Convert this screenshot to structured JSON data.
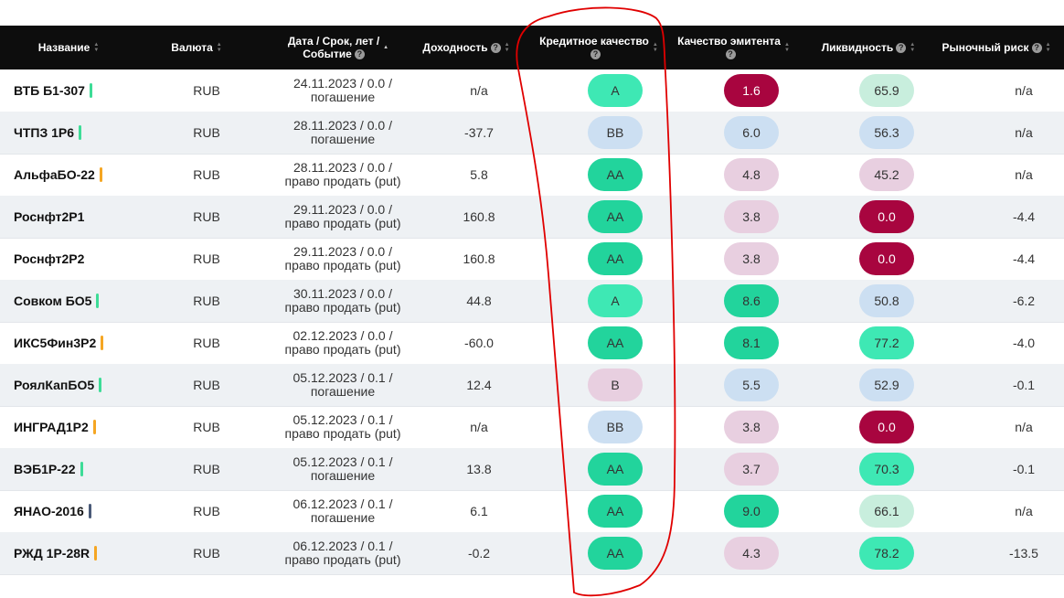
{
  "header": {
    "name": "Название",
    "currency": "Валюта",
    "date_line1": "Дата / Срок, лет /",
    "date_line2": "Событие",
    "yield": "Доходность",
    "credit": "Кредитное качество",
    "issuer": "Качество эмитента",
    "liquidity": "Ликвидность",
    "market_risk": "Рыночный риск",
    "help_icon": "?"
  },
  "colors": {
    "header_bg": "#0d0d0d",
    "green_dark": "#22d49c",
    "green_mid": "#3ee8b4",
    "green_light": "#c8eedd",
    "blue_light": "#ccdff2",
    "pink_light": "#e8cfe0",
    "crimson": "#a8053f",
    "annotation_red": "#e00000"
  },
  "rows": [
    {
      "name": "ВТБ Б1-307",
      "bar": "#3ddc97",
      "currency": "RUB",
      "date": "24.11.2023 / 0.0 /",
      "event": "погашение",
      "yield": "n/a",
      "credit": "A",
      "credit_color": "#3ee8b4",
      "issuer": "1.6",
      "issuer_color": "#a8053f",
      "issuer_text": "#ffffff",
      "liq": "65.9",
      "liq_color": "#c8eedd",
      "liq_text": "#333333",
      "risk": "n/a"
    },
    {
      "name": "ЧТПЗ 1Р6",
      "bar": "#3ddc97",
      "currency": "RUB",
      "date": "28.11.2023 / 0.0 /",
      "event": "погашение",
      "yield": "-37.7",
      "credit": "BB",
      "credit_color": "#ccdff2",
      "issuer": "6.0",
      "issuer_color": "#ccdff2",
      "issuer_text": "#333333",
      "liq": "56.3",
      "liq_color": "#ccdff2",
      "liq_text": "#333333",
      "risk": "n/a"
    },
    {
      "name": "АльфаБО-22",
      "bar": "#f5a623",
      "currency": "RUB",
      "date": "28.11.2023 / 0.0 /",
      "event": "право продать (put)",
      "yield": "5.8",
      "credit": "AA",
      "credit_color": "#22d49c",
      "issuer": "4.8",
      "issuer_color": "#e8cfe0",
      "issuer_text": "#333333",
      "liq": "45.2",
      "liq_color": "#e8cfe0",
      "liq_text": "#333333",
      "risk": "n/a"
    },
    {
      "name": "Роснфт2Р1",
      "bar": "",
      "currency": "RUB",
      "date": "29.11.2023 / 0.0 /",
      "event": "право продать (put)",
      "yield": "160.8",
      "credit": "AA",
      "credit_color": "#22d49c",
      "issuer": "3.8",
      "issuer_color": "#e8cfe0",
      "issuer_text": "#333333",
      "liq": "0.0",
      "liq_color": "#a8053f",
      "liq_text": "#ffffff",
      "risk": "-4.4"
    },
    {
      "name": "Роснфт2Р2",
      "bar": "",
      "currency": "RUB",
      "date": "29.11.2023 / 0.0 /",
      "event": "право продать (put)",
      "yield": "160.8",
      "credit": "AA",
      "credit_color": "#22d49c",
      "issuer": "3.8",
      "issuer_color": "#e8cfe0",
      "issuer_text": "#333333",
      "liq": "0.0",
      "liq_color": "#a8053f",
      "liq_text": "#ffffff",
      "risk": "-4.4"
    },
    {
      "name": "Совком БО5",
      "bar": "#3ddc97",
      "currency": "RUB",
      "date": "30.11.2023 / 0.0 /",
      "event": "право продать (put)",
      "yield": "44.8",
      "credit": "A",
      "credit_color": "#3ee8b4",
      "issuer": "8.6",
      "issuer_color": "#22d49c",
      "issuer_text": "#333333",
      "liq": "50.8",
      "liq_color": "#ccdff2",
      "liq_text": "#333333",
      "risk": "-6.2"
    },
    {
      "name": "ИКС5Фин3Р2",
      "bar": "#f5a623",
      "currency": "RUB",
      "date": "02.12.2023 / 0.0 /",
      "event": "право продать (put)",
      "yield": "-60.0",
      "credit": "AA",
      "credit_color": "#22d49c",
      "issuer": "8.1",
      "issuer_color": "#22d49c",
      "issuer_text": "#333333",
      "liq": "77.2",
      "liq_color": "#3ee8b4",
      "liq_text": "#333333",
      "risk": "-4.0"
    },
    {
      "name": "РоялКапБО5",
      "bar": "#3ddc97",
      "currency": "RUB",
      "date": "05.12.2023 / 0.1 /",
      "event": "погашение",
      "yield": "12.4",
      "credit": "B",
      "credit_color": "#e8cfe0",
      "issuer": "5.5",
      "issuer_color": "#ccdff2",
      "issuer_text": "#333333",
      "liq": "52.9",
      "liq_color": "#ccdff2",
      "liq_text": "#333333",
      "risk": "-0.1"
    },
    {
      "name": "ИНГРАД1Р2",
      "bar": "#f5a623",
      "currency": "RUB",
      "date": "05.12.2023 / 0.1 /",
      "event": "право продать (put)",
      "yield": "n/a",
      "credit": "BB",
      "credit_color": "#ccdff2",
      "issuer": "3.8",
      "issuer_color": "#e8cfe0",
      "issuer_text": "#333333",
      "liq": "0.0",
      "liq_color": "#a8053f",
      "liq_text": "#ffffff",
      "risk": "n/a"
    },
    {
      "name": "ВЭБ1Р-22",
      "bar": "#3ddc97",
      "currency": "RUB",
      "date": "05.12.2023 / 0.1 /",
      "event": "погашение",
      "yield": "13.8",
      "credit": "AA",
      "credit_color": "#22d49c",
      "issuer": "3.7",
      "issuer_color": "#e8cfe0",
      "issuer_text": "#333333",
      "liq": "70.3",
      "liq_color": "#3ee8b4",
      "liq_text": "#333333",
      "risk": "-0.1"
    },
    {
      "name": "ЯНАО-2016",
      "bar": "#4a5a78",
      "currency": "RUB",
      "date": "06.12.2023 / 0.1 /",
      "event": "погашение",
      "yield": "6.1",
      "credit": "AA",
      "credit_color": "#22d49c",
      "issuer": "9.0",
      "issuer_color": "#22d49c",
      "issuer_text": "#333333",
      "liq": "66.1",
      "liq_color": "#c8eedd",
      "liq_text": "#333333",
      "risk": "n/a"
    },
    {
      "name": "РЖД 1Р-28R",
      "bar": "#f5a623",
      "currency": "RUB",
      "date": "06.12.2023 / 0.1 /",
      "event": "право продать (put)",
      "yield": "-0.2",
      "credit": "AA",
      "credit_color": "#22d49c",
      "issuer": "4.3",
      "issuer_color": "#e8cfe0",
      "issuer_text": "#333333",
      "liq": "78.2",
      "liq_color": "#3ee8b4",
      "liq_text": "#333333",
      "risk": "-13.5"
    }
  ]
}
